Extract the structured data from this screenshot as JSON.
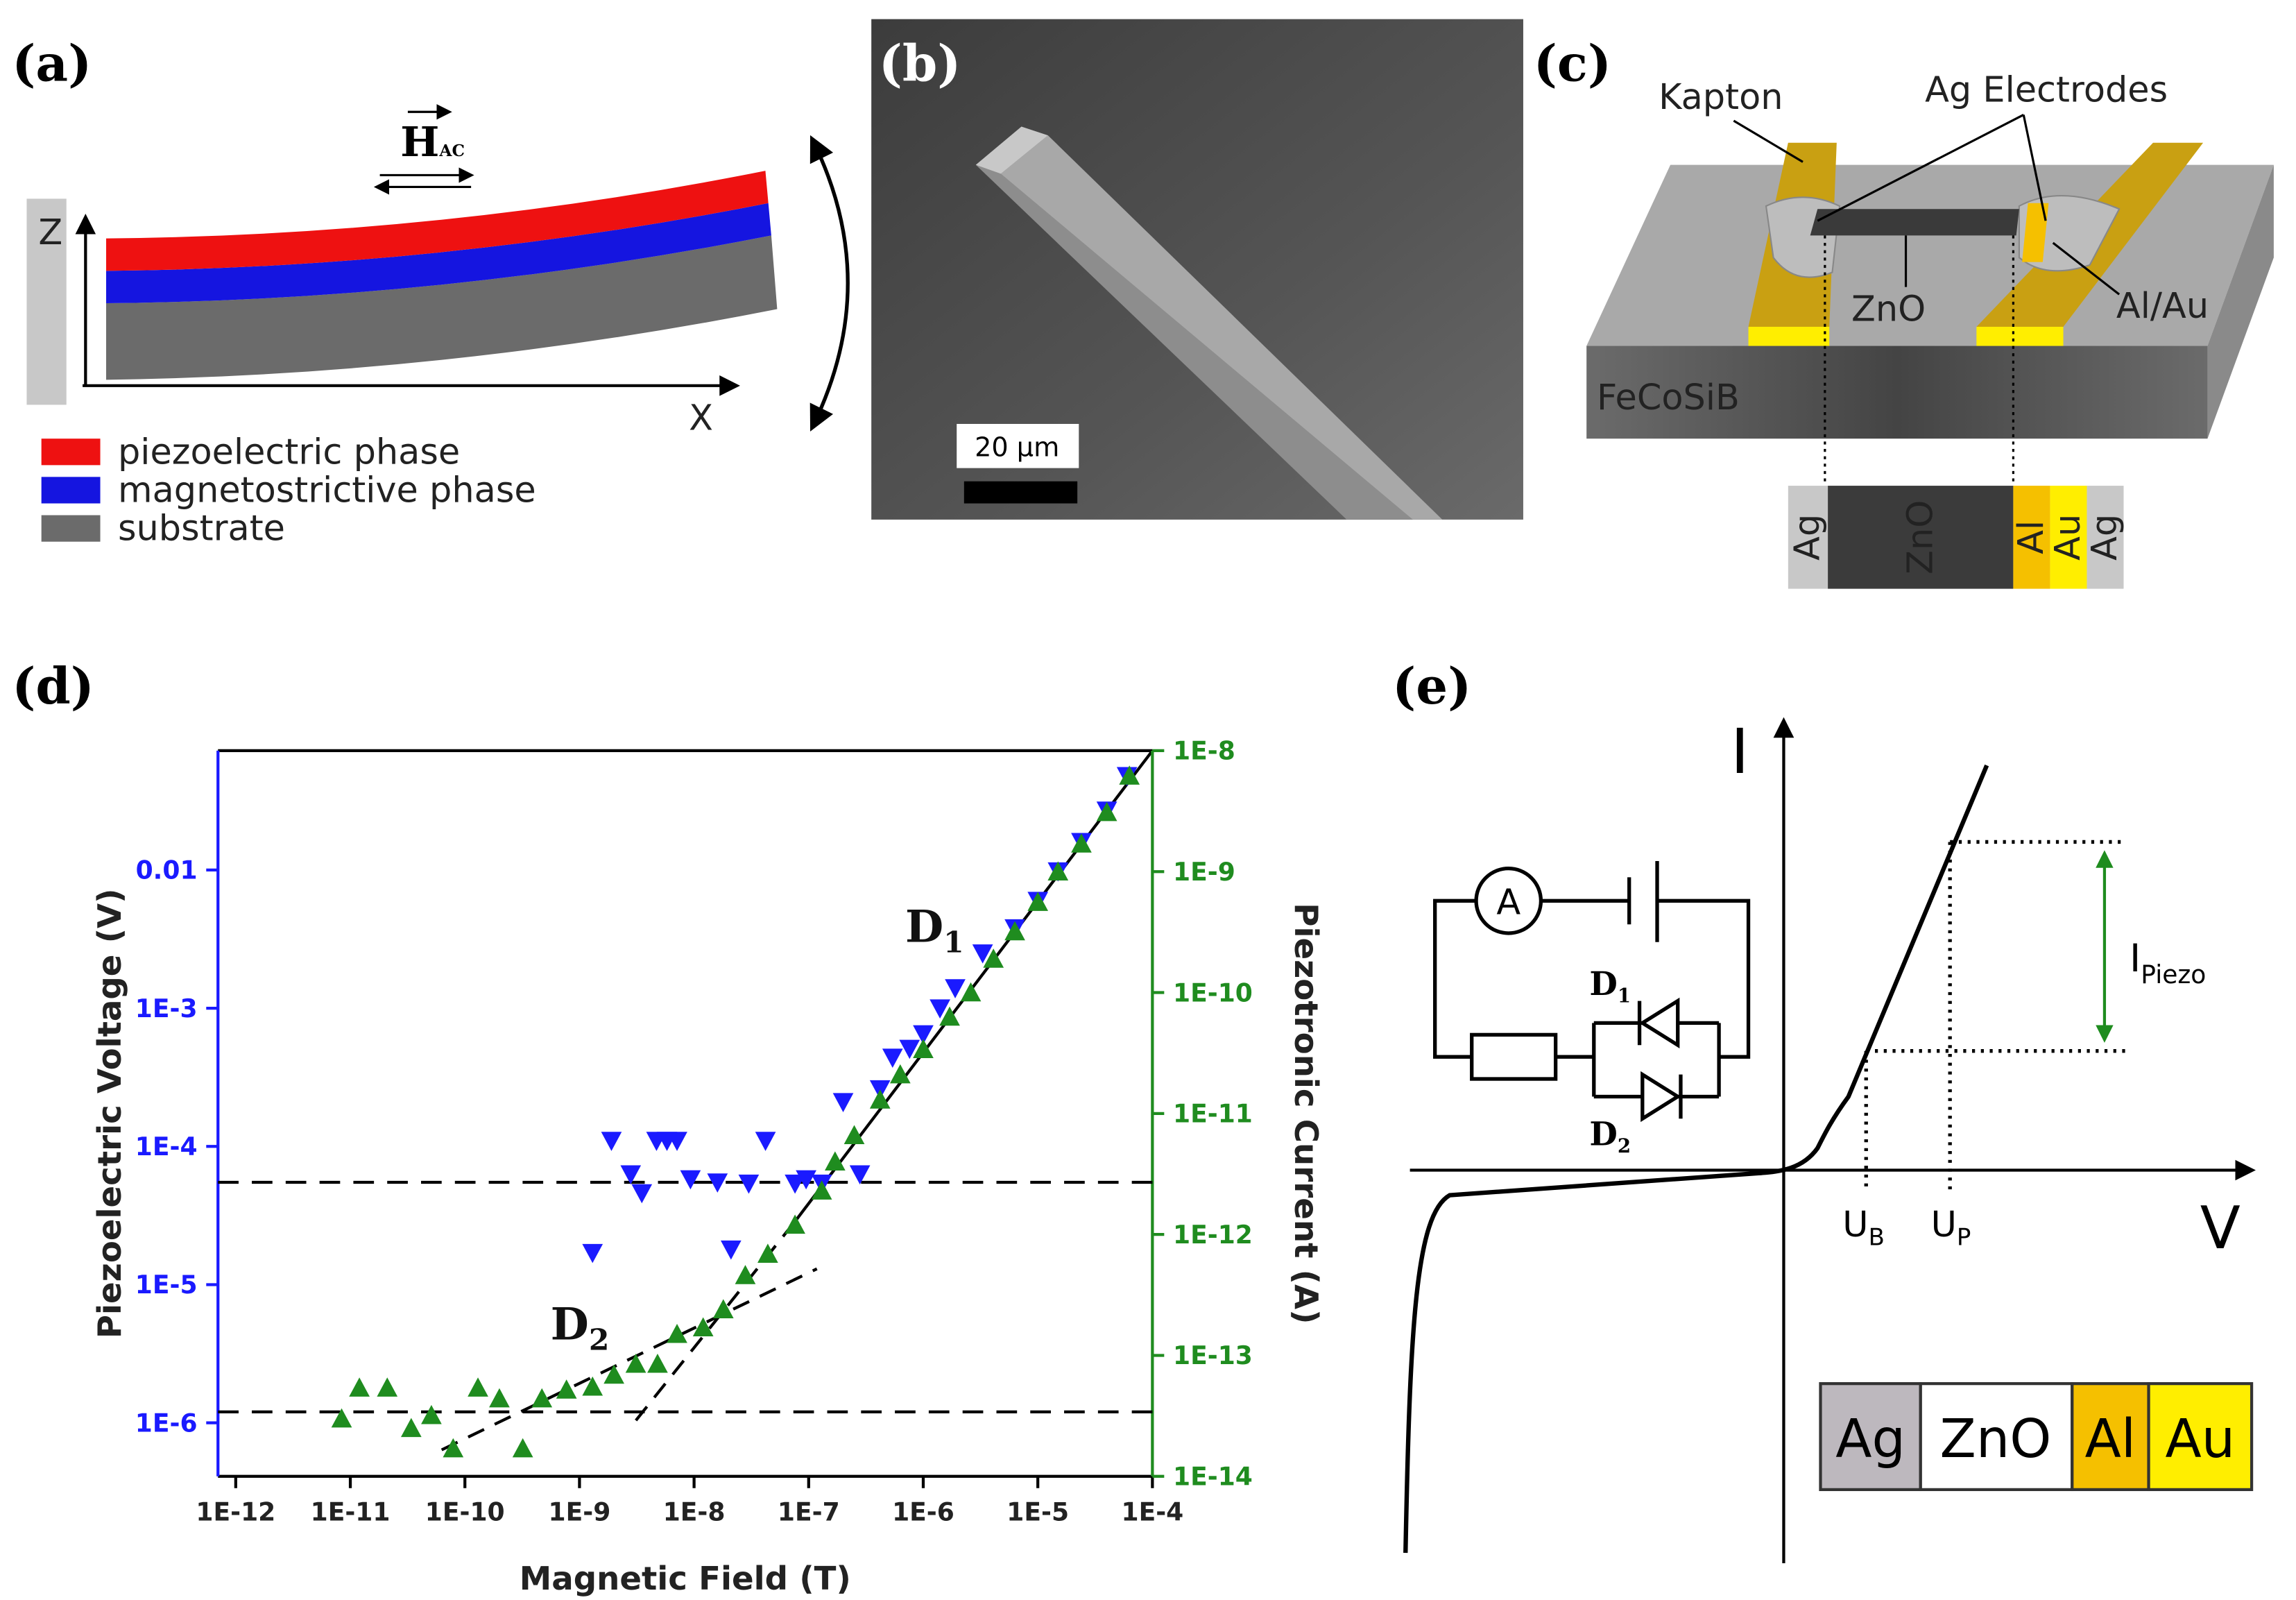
{
  "panels": {
    "a": {
      "label": "(a)",
      "field": {
        "symbol": "H",
        "subscript": "AC"
      },
      "axis_z": "Z",
      "axis_x": "X",
      "legend": [
        "piezoelectric phase",
        "magnetostrictive phase",
        "substrate"
      ]
    },
    "b": {
      "label": "(b)",
      "scale_bar": "20 µm"
    },
    "c": {
      "label": "(c)",
      "callouts": [
        "Kapton",
        "Ag Electrodes",
        "ZnO",
        "Al/Au",
        "FeCoSiB"
      ],
      "layers": [
        "Ag",
        "ZnO",
        "Al",
        "Au",
        "Ag"
      ]
    },
    "d": {
      "label": "(d)"
    },
    "e": {
      "label": "(e)",
      "axis_i": "I",
      "axis_v": "V",
      "ammeter": "A",
      "diodes": [
        {
          "text": "D",
          "subscript": "1"
        },
        {
          "text": "D",
          "subscript": "2"
        }
      ],
      "voltages": [
        {
          "text": "U",
          "subscript": "B"
        },
        {
          "text": "U",
          "subscript": "P"
        }
      ],
      "current": {
        "text": "I",
        "subscript": "Piezo"
      },
      "layers": [
        "Ag",
        "ZnO",
        "Al",
        "Au"
      ]
    }
  },
  "chart_data": {
    "type": "scatter",
    "x_label": "Magnetic Field (T)",
    "y_label": "Piezoelectric Voltage (V)",
    "y2_label": "Piezotronic Current (A)",
    "xscale": "log",
    "yscale": "log",
    "y2scale": "log",
    "xlim": [
      7e-13,
      0.0001
    ],
    "ylim": [
      4.1e-07,
      0.073
    ],
    "y2lim": [
      1e-14,
      1e-08
    ],
    "xticks": [
      {
        "value": 1e-12,
        "label": "1E-12"
      },
      {
        "value": 1e-11,
        "label": "1E-11"
      },
      {
        "value": 1e-10,
        "label": "1E-10"
      },
      {
        "value": 1e-09,
        "label": "1E-9"
      },
      {
        "value": 1e-08,
        "label": "1E-8"
      },
      {
        "value": 1e-07,
        "label": "1E-7"
      },
      {
        "value": 1e-06,
        "label": "1E-6"
      },
      {
        "value": 1e-05,
        "label": "1E-5"
      },
      {
        "value": 0.0001,
        "label": "1E-4"
      }
    ],
    "yticks": [
      {
        "value": 1e-06,
        "label": "1E-6"
      },
      {
        "value": 1e-05,
        "label": "1E-5"
      },
      {
        "value": 0.0001,
        "label": "1E-4"
      },
      {
        "value": 0.001,
        "label": "1E-3"
      },
      0.01
    ],
    "y2ticks": [
      {
        "value": 1e-14,
        "label": "1E-14"
      },
      {
        "value": 1e-13,
        "label": "1E-13"
      },
      {
        "value": 1e-12,
        "label": "1E-12"
      },
      {
        "value": 1e-11,
        "label": "1E-11"
      },
      {
        "value": 1e-10,
        "label": "1E-10"
      },
      {
        "value": 1e-09,
        "label": "1E-9"
      },
      {
        "value": 1e-08,
        "label": "1E-8"
      }
    ],
    "reference_lines": [
      5.5e-05,
      1.2e-06
    ],
    "annotations": [
      {
        "text": "D",
        "subscript": "1"
      },
      {
        "text": "D",
        "subscript": "2"
      }
    ],
    "series": [
      {
        "color": "#1a1aff",
        "marker": "triangle-down",
        "axis": "y",
        "x": [
          1.3e-09,
          1.9e-09,
          2.8e-09,
          3.5e-09,
          4.7e-09,
          5.8e-09,
          7.1e-09,
          9.3e-09,
          1.6e-08,
          2.1e-08,
          3e-08,
          4.2e-08,
          7.6e-08,
          9.5e-08,
          1.3e-07,
          2e-07,
          2.8e-07,
          4.2e-07,
          5.4e-07,
          7.6e-07,
          1e-06,
          1.4e-06,
          1.9e-06,
          3.3e-06,
          6.3e-06,
          1e-05,
          1.5e-05,
          2.4e-05,
          4e-05,
          6e-05
        ],
        "values": [
          1.7e-05,
          0.00011,
          6.3e-05,
          4.6e-05,
          0.00011,
          0.00011,
          0.00011,
          5.8e-05,
          5.5e-05,
          1.8e-05,
          5.4e-05,
          0.00011,
          5.4e-05,
          5.8e-05,
          5.4e-05,
          0.00021,
          6.3e-05,
          0.00026,
          0.00044,
          0.00051,
          0.00065,
          0.001,
          0.0014,
          0.0025,
          0.0038,
          0.006,
          0.0098,
          0.016,
          0.027,
          0.048
        ]
      },
      {
        "color": "#1f8c1f",
        "marker": "triangle-up",
        "axis": "y2",
        "x": [
          8.4e-12,
          1.2e-11,
          2.1e-11,
          3.4e-11,
          5.1e-11,
          7.9e-11,
          1.3e-10,
          2e-10,
          3.2e-10,
          4.7e-10,
          7.7e-10,
          1.3e-09,
          2e-09,
          3.1e-09,
          4.8e-09,
          7.1e-09,
          1.2e-08,
          1.8e-08,
          2.8e-08,
          4.4e-08,
          7.6e-08,
          1.3e-07,
          1.7e-07,
          2.5e-07,
          4.2e-07,
          6.3e-07,
          1e-06,
          1.7e-06,
          2.6e-06,
          4.1e-06,
          6.3e-06,
          1e-05,
          1.5e-05,
          2.4e-05,
          4e-05,
          6.3e-05
        ],
        "values": [
          3e-14,
          5.4e-14,
          5.4e-14,
          2.5e-14,
          3.2e-14,
          1.7e-14,
          5.4e-14,
          4.4e-14,
          1.7e-14,
          4.4e-14,
          5.2e-14,
          5.5e-14,
          6.9e-14,
          8.5e-14,
          8.5e-14,
          1.5e-13,
          1.7e-13,
          2.4e-13,
          4.6e-13,
          6.9e-13,
          1.2e-12,
          2.3e-12,
          4e-12,
          6.6e-12,
          1.3e-11,
          2.1e-11,
          3.4e-11,
          6.3e-11,
          1e-10,
          1.9e-10,
          3.2e-10,
          5.6e-10,
          1e-09,
          1.7e-09,
          3.1e-09,
          6.2e-09
        ]
      }
    ]
  }
}
